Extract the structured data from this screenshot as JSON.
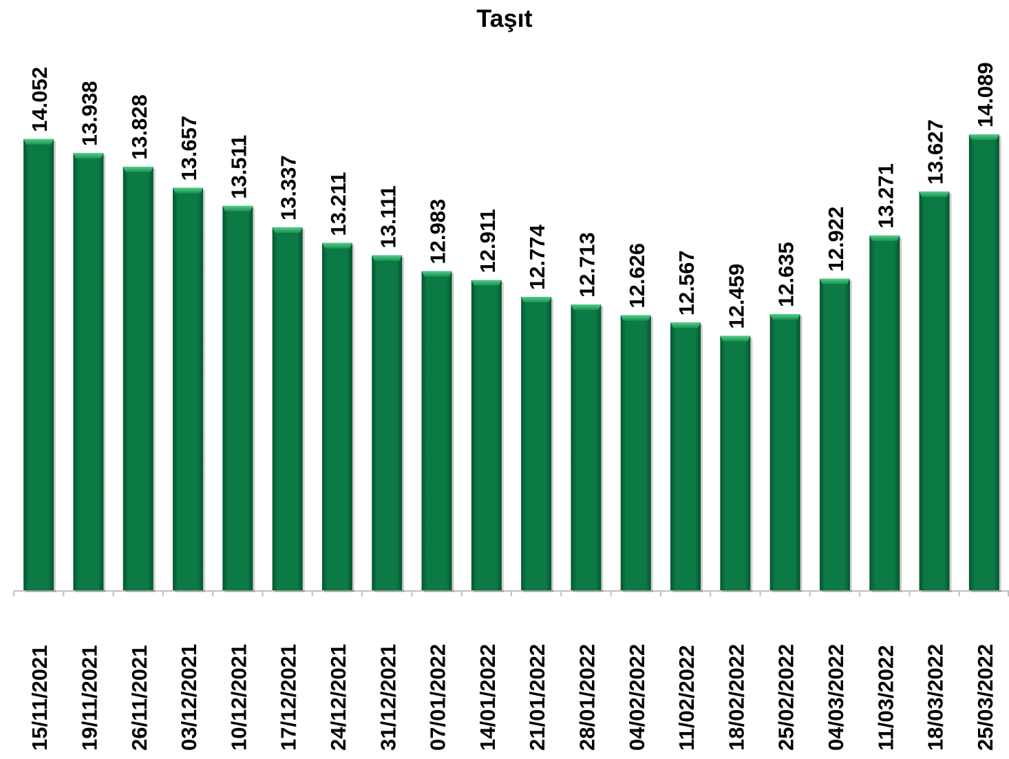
{
  "chart_data": {
    "type": "bar",
    "title": "Taşıt",
    "xlabel": "",
    "ylabel": "",
    "categories": [
      "15/11/2021",
      "19/11/2021",
      "26/11/2021",
      "03/12/2021",
      "10/12/2021",
      "17/12/2021",
      "24/12/2021",
      "31/12/2021",
      "07/01/2022",
      "14/01/2022",
      "21/01/2022",
      "28/01/2022",
      "04/02/2022",
      "11/02/2022",
      "18/02/2022",
      "25/02/2022",
      "04/03/2022",
      "11/03/2022",
      "18/03/2022",
      "25/03/2022"
    ],
    "values": [
      14.052,
      13.938,
      13.828,
      13.657,
      13.511,
      13.337,
      13.211,
      13.111,
      12.983,
      12.911,
      12.774,
      12.713,
      12.626,
      12.567,
      12.459,
      12.635,
      12.922,
      13.271,
      13.627,
      14.089
    ],
    "value_labels": [
      "14.052",
      "13.938",
      "13.828",
      "13.657",
      "13.511",
      "13.337",
      "13.211",
      "13.111",
      "12.983",
      "12.911",
      "12.774",
      "12.713",
      "12.626",
      "12.567",
      "12.459",
      "12.635",
      "12.922",
      "13.271",
      "13.627",
      "14.089"
    ],
    "ylim": [
      10.4,
      14.09
    ],
    "grid": false,
    "legend": "none",
    "colors": {
      "bar": "#0b7a45",
      "bar_top": "#35b46e",
      "axis": "#bfbfbf"
    }
  }
}
